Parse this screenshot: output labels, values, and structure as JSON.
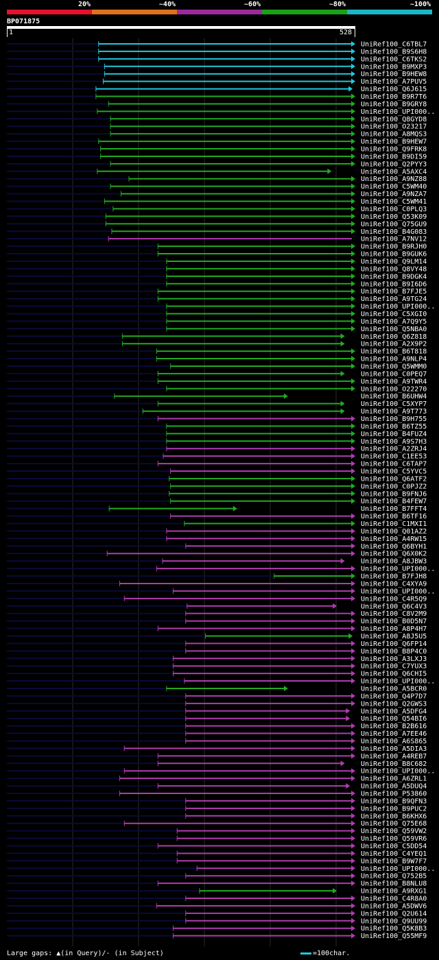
{
  "legend": {
    "labels": [
      "20%",
      "~40%",
      "~60%",
      "~80%",
      "~100%"
    ],
    "colors": [
      "#e4122c",
      "#e0701a",
      "#9b2a9b",
      "#1aa01a",
      "#18b8c8"
    ]
  },
  "query": {
    "name": "BP071875",
    "start": "1",
    "end": "528"
  },
  "footer": {
    "gaps_label": "Large gaps: ▲(in Query)/- (in Subject)",
    "scale_label": "=100char."
  },
  "chart_data": {
    "type": "alignment",
    "query_length": 528,
    "colors": {
      "cyan": "#22c8e0",
      "green": "#22aa22",
      "purple": "#b03cb0",
      "dim": "#0a0a3a"
    },
    "hits": [
      {
        "name": "UniRef100_C6TBL7",
        "color": "cyan",
        "start": 139,
        "end": 528,
        "arrow": true
      },
      {
        "name": "UniRef100_B9S6H8",
        "color": "cyan",
        "start": 139,
        "end": 528,
        "arrow": true
      },
      {
        "name": "UniRef100_C6TKS2",
        "color": "cyan",
        "start": 139,
        "end": 528,
        "arrow": true
      },
      {
        "name": "UniRef100_B9MXP3",
        "color": "cyan",
        "start": 148,
        "end": 528,
        "arrow": true
      },
      {
        "name": "UniRef100_B9HEW8",
        "color": "cyan",
        "start": 148,
        "end": 528,
        "arrow": true
      },
      {
        "name": "UniRef100_A7PUV5",
        "color": "cyan",
        "start": 146,
        "end": 528,
        "arrow": true
      },
      {
        "name": "UniRef100_Q6J615",
        "color": "cyan",
        "start": 135,
        "end": 524,
        "arrow": true
      },
      {
        "name": "UniRef100_B9R7T6",
        "color": "green",
        "start": 135,
        "end": 528,
        "arrow": true
      },
      {
        "name": "UniRef100_B9GRY8",
        "color": "green",
        "start": 154,
        "end": 528,
        "arrow": true
      },
      {
        "name": "UniRef100_UPI000..",
        "color": "green",
        "start": 137,
        "end": 528,
        "arrow": true
      },
      {
        "name": "UniRef100_Q8GYD8",
        "color": "green",
        "start": 157,
        "end": 528,
        "arrow": true
      },
      {
        "name": "UniRef100_O23217",
        "color": "green",
        "start": 157,
        "end": 528,
        "arrow": true
      },
      {
        "name": "UniRef100_A8MQS3",
        "color": "green",
        "start": 157,
        "end": 528,
        "arrow": true
      },
      {
        "name": "UniRef100_B9HEW7",
        "color": "green",
        "start": 139,
        "end": 528,
        "arrow": true
      },
      {
        "name": "UniRef100_Q9FRK8",
        "color": "green",
        "start": 142,
        "end": 528,
        "arrow": true
      },
      {
        "name": "UniRef100_B9DI59",
        "color": "green",
        "start": 142,
        "end": 528,
        "arrow": true
      },
      {
        "name": "UniRef100_Q2PYY3",
        "color": "green",
        "start": 157,
        "end": 528,
        "arrow": true
      },
      {
        "name": "UniRef100_A5AXC4",
        "color": "green",
        "start": 137,
        "end": 492,
        "arrow": true
      },
      {
        "name": "UniRef100_A9NZ88",
        "color": "green",
        "start": 185,
        "end": 528,
        "arrow": true
      },
      {
        "name": "UniRef100_C5WM40",
        "color": "green",
        "start": 157,
        "end": 528,
        "arrow": true
      },
      {
        "name": "UniRef100_A9NZA7",
        "color": "green",
        "start": 173,
        "end": 528,
        "arrow": true
      },
      {
        "name": "UniRef100_C5WM41",
        "color": "green",
        "start": 148,
        "end": 528,
        "arrow": true
      },
      {
        "name": "UniRef100_C0PLQ3",
        "color": "green",
        "start": 161,
        "end": 528,
        "arrow": true
      },
      {
        "name": "UniRef100_Q53K09",
        "color": "green",
        "start": 150,
        "end": 528,
        "arrow": true
      },
      {
        "name": "UniRef100_Q75GU9",
        "color": "green",
        "start": 150,
        "end": 528,
        "arrow": true
      },
      {
        "name": "UniRef100_B4G083",
        "color": "green",
        "start": 159,
        "end": 528,
        "arrow": true
      },
      {
        "name": "UniRef100_A7NV12",
        "color": "purple",
        "start": 154,
        "end": 528,
        "arrow": false
      },
      {
        "name": "UniRef100_B9RJH0",
        "color": "green",
        "start": 229,
        "end": 528,
        "arrow": true
      },
      {
        "name": "UniRef100_B9GUK6",
        "color": "green",
        "start": 229,
        "end": 528,
        "arrow": true
      },
      {
        "name": "UniRef100_Q9LM14",
        "color": "green",
        "start": 242,
        "end": 528,
        "arrow": true
      },
      {
        "name": "UniRef100_Q8VY48",
        "color": "green",
        "start": 242,
        "end": 528,
        "arrow": true
      },
      {
        "name": "UniRef100_B9DGK4",
        "color": "green",
        "start": 242,
        "end": 528,
        "arrow": true
      },
      {
        "name": "UniRef100_B9I6D6",
        "color": "green",
        "start": 242,
        "end": 528,
        "arrow": true
      },
      {
        "name": "UniRef100_B7FJE5",
        "color": "green",
        "start": 229,
        "end": 528,
        "arrow": true
      },
      {
        "name": "UniRef100_A9TG24",
        "color": "green",
        "start": 229,
        "end": 528,
        "arrow": true
      },
      {
        "name": "UniRef100_UPI000..",
        "color": "green",
        "start": 242,
        "end": 528,
        "arrow": true
      },
      {
        "name": "UniRef100_C5XGI0",
        "color": "green",
        "start": 242,
        "end": 528,
        "arrow": true
      },
      {
        "name": "UniRef100_A7Q9Y5",
        "color": "green",
        "start": 242,
        "end": 528,
        "arrow": true
      },
      {
        "name": "UniRef100_Q5NBA0",
        "color": "green",
        "start": 242,
        "end": 528,
        "arrow": true
      },
      {
        "name": "UniRef100_Q6Z818",
        "color": "green",
        "start": 175,
        "end": 512,
        "arrow": true
      },
      {
        "name": "UniRef100_A2X9P2",
        "color": "green",
        "start": 175,
        "end": 512,
        "arrow": true
      },
      {
        "name": "UniRef100_B6T818",
        "color": "green",
        "start": 227,
        "end": 528,
        "arrow": true
      },
      {
        "name": "UniRef100_A9NLP4",
        "color": "green",
        "start": 227,
        "end": 528,
        "arrow": true
      },
      {
        "name": "UniRef100_Q5WMM0",
        "color": "green",
        "start": 248,
        "end": 528,
        "arrow": true
      },
      {
        "name": "UniRef100_C0PEQ7",
        "color": "green",
        "start": 229,
        "end": 512,
        "arrow": true
      },
      {
        "name": "UniRef100_A9TWR4",
        "color": "green",
        "start": 229,
        "end": 528,
        "arrow": true
      },
      {
        "name": "UniRef100_O22270",
        "color": "green",
        "start": 242,
        "end": 528,
        "arrow": true
      },
      {
        "name": "UniRef100_B6UHW4",
        "color": "green",
        "start": 163,
        "end": 426,
        "arrow": true
      },
      {
        "name": "UniRef100_C5XYP7",
        "color": "green",
        "start": 229,
        "end": 512,
        "arrow": true
      },
      {
        "name": "UniRef100_A9T773",
        "color": "green",
        "start": 206,
        "end": 512,
        "arrow": true
      },
      {
        "name": "UniRef100_B9H755",
        "color": "purple",
        "start": 229,
        "end": 528,
        "arrow": true
      },
      {
        "name": "UniRef100_B6TZ55",
        "color": "green",
        "start": 242,
        "end": 528,
        "arrow": true
      },
      {
        "name": "UniRef100_B4FUZ4",
        "color": "green",
        "start": 242,
        "end": 528,
        "arrow": true
      },
      {
        "name": "UniRef100_A9S7H3",
        "color": "green",
        "start": 242,
        "end": 528,
        "arrow": true
      },
      {
        "name": "UniRef100_A2ZRJ4",
        "color": "purple",
        "start": 242,
        "end": 528,
        "arrow": true
      },
      {
        "name": "UniRef100_C1EE53",
        "color": "purple",
        "start": 237,
        "end": 528,
        "arrow": true
      },
      {
        "name": "UniRef100_C6TAP7",
        "color": "purple",
        "start": 229,
        "end": 528,
        "arrow": true
      },
      {
        "name": "UniRef100_C5YVC5",
        "color": "purple",
        "start": 248,
        "end": 528,
        "arrow": true
      },
      {
        "name": "UniRef100_Q6ATF2",
        "color": "green",
        "start": 246,
        "end": 528,
        "arrow": true
      },
      {
        "name": "UniRef100_C0PJZ2",
        "color": "green",
        "start": 248,
        "end": 528,
        "arrow": true
      },
      {
        "name": "UniRef100_B9FNJ6",
        "color": "green",
        "start": 246,
        "end": 528,
        "arrow": true
      },
      {
        "name": "UniRef100_B4FEW7",
        "color": "green",
        "start": 248,
        "end": 528,
        "arrow": true
      },
      {
        "name": "UniRef100_B7FFT4",
        "color": "green",
        "start": 155,
        "end": 349,
        "arrow": true
      },
      {
        "name": "UniRef100_B6TF16",
        "color": "purple",
        "start": 248,
        "end": 528,
        "arrow": true
      },
      {
        "name": "UniRef100_C1MXI1",
        "color": "green",
        "start": 269,
        "end": 528,
        "arrow": true
      },
      {
        "name": "UniRef100_Q01AZ2",
        "color": "purple",
        "start": 242,
        "end": 528,
        "arrow": true
      },
      {
        "name": "UniRef100_A4RW15",
        "color": "purple",
        "start": 242,
        "end": 528,
        "arrow": true
      },
      {
        "name": "UniRef100_Q6BYH1",
        "color": "purple",
        "start": 271,
        "end": 528,
        "arrow": true
      },
      {
        "name": "UniRef100_Q6X0K2",
        "color": "purple",
        "start": 152,
        "end": 528,
        "arrow": true
      },
      {
        "name": "UniRef100_A8JBW3",
        "color": "purple",
        "start": 236,
        "end": 512,
        "arrow": true
      },
      {
        "name": "UniRef100_UPI000..",
        "color": "purple",
        "start": 227,
        "end": 528,
        "arrow": true
      },
      {
        "name": "UniRef100_B7FJH8",
        "color": "green",
        "start": 405,
        "end": 528,
        "arrow": true
      },
      {
        "name": "UniRef100_C4XYA9",
        "color": "purple",
        "start": 171,
        "end": 528,
        "arrow": true
      },
      {
        "name": "UniRef100_UPI000..",
        "color": "purple",
        "start": 252,
        "end": 528,
        "arrow": true
      },
      {
        "name": "UniRef100_C4R5Q9",
        "color": "purple",
        "start": 178,
        "end": 528,
        "arrow": true
      },
      {
        "name": "UniRef100_Q6C4V3",
        "color": "purple",
        "start": 273,
        "end": 500,
        "arrow": true
      },
      {
        "name": "UniRef100_C8V2M9",
        "color": "purple",
        "start": 271,
        "end": 528,
        "arrow": true
      },
      {
        "name": "UniRef100_B0D5N7",
        "color": "purple",
        "start": 271,
        "end": 528,
        "arrow": true
      },
      {
        "name": "UniRef100_A8P4H7",
        "color": "purple",
        "start": 229,
        "end": 528,
        "arrow": true
      },
      {
        "name": "UniRef100_A8J5U5",
        "color": "green",
        "start": 301,
        "end": 524,
        "arrow": true
      },
      {
        "name": "UniRef100_Q6FP14",
        "color": "purple",
        "start": 271,
        "end": 528,
        "arrow": true
      },
      {
        "name": "UniRef100_B8P4C0",
        "color": "purple",
        "start": 271,
        "end": 528,
        "arrow": true
      },
      {
        "name": "UniRef100_A3LXJ3",
        "color": "purple",
        "start": 252,
        "end": 528,
        "arrow": true
      },
      {
        "name": "UniRef100_C7YUX3",
        "color": "purple",
        "start": 252,
        "end": 528,
        "arrow": true
      },
      {
        "name": "UniRef100_Q6CHI5",
        "color": "purple",
        "start": 252,
        "end": 528,
        "arrow": true
      },
      {
        "name": "UniRef100_UPI000..",
        "color": "purple",
        "start": 269,
        "end": 528,
        "arrow": true
      },
      {
        "name": "UniRef100_A5BCR0",
        "color": "green",
        "start": 242,
        "end": 426,
        "arrow": true
      },
      {
        "name": "UniRef100_Q4P7D7",
        "color": "purple",
        "start": 271,
        "end": 528,
        "arrow": true
      },
      {
        "name": "UniRef100_Q2GWS3",
        "color": "purple",
        "start": 271,
        "end": 528,
        "arrow": true
      },
      {
        "name": "UniRef100_A5DFG4",
        "color": "purple",
        "start": 271,
        "end": 520,
        "arrow": true
      },
      {
        "name": "UniRef100_Q54BI6",
        "color": "purple",
        "start": 271,
        "end": 520,
        "arrow": true
      },
      {
        "name": "UniRef100_B2B616",
        "color": "purple",
        "start": 271,
        "end": 528,
        "arrow": true
      },
      {
        "name": "UniRef100_A7EE46",
        "color": "purple",
        "start": 271,
        "end": 528,
        "arrow": true
      },
      {
        "name": "UniRef100_A6S865",
        "color": "purple",
        "start": 271,
        "end": 528,
        "arrow": true
      },
      {
        "name": "UniRef100_A5DIA3",
        "color": "purple",
        "start": 178,
        "end": 528,
        "arrow": true
      },
      {
        "name": "UniRef100_A4REB7",
        "color": "purple",
        "start": 229,
        "end": 528,
        "arrow": true
      },
      {
        "name": "UniRef100_B8C682",
        "color": "purple",
        "start": 229,
        "end": 512,
        "arrow": true
      },
      {
        "name": "UniRef100_UPI000..",
        "color": "purple",
        "start": 178,
        "end": 528,
        "arrow": true
      },
      {
        "name": "UniRef100_A6ZRL1",
        "color": "purple",
        "start": 171,
        "end": 528,
        "arrow": true
      },
      {
        "name": "UniRef100_A5DUQ4",
        "color": "purple",
        "start": 229,
        "end": 520,
        "arrow": true
      },
      {
        "name": "UniRef100_P53860",
        "color": "purple",
        "start": 171,
        "end": 528,
        "arrow": true
      },
      {
        "name": "UniRef100_B9QFN3",
        "color": "purple",
        "start": 271,
        "end": 528,
        "arrow": true
      },
      {
        "name": "UniRef100_B9PUC2",
        "color": "purple",
        "start": 271,
        "end": 528,
        "arrow": true
      },
      {
        "name": "UniRef100_B6KHX6",
        "color": "purple",
        "start": 271,
        "end": 528,
        "arrow": true
      },
      {
        "name": "UniRef100_Q75E68",
        "color": "purple",
        "start": 178,
        "end": 528,
        "arrow": true
      },
      {
        "name": "UniRef100_Q59VW2",
        "color": "purple",
        "start": 258,
        "end": 528,
        "arrow": true
      },
      {
        "name": "UniRef100_Q59VR6",
        "color": "purple",
        "start": 258,
        "end": 528,
        "arrow": true
      },
      {
        "name": "UniRef100_C5DD54",
        "color": "purple",
        "start": 229,
        "end": 528,
        "arrow": true
      },
      {
        "name": "UniRef100_C4YEQ1",
        "color": "purple",
        "start": 258,
        "end": 528,
        "arrow": true
      },
      {
        "name": "UniRef100_B9W7F7",
        "color": "purple",
        "start": 258,
        "end": 528,
        "arrow": true
      },
      {
        "name": "UniRef100_UPI000..",
        "color": "purple",
        "start": 288,
        "end": 528,
        "arrow": true
      },
      {
        "name": "UniRef100_Q752B5",
        "color": "purple",
        "start": 271,
        "end": 528,
        "arrow": true
      },
      {
        "name": "UniRef100_B8NLU8",
        "color": "purple",
        "start": 229,
        "end": 528,
        "arrow": true
      },
      {
        "name": "UniRef100_A9RXG1",
        "color": "green",
        "start": 292,
        "end": 500,
        "arrow": true
      },
      {
        "name": "UniRef100_C4R8A0",
        "color": "purple",
        "start": 271,
        "end": 528,
        "arrow": true
      },
      {
        "name": "UniRef100_A5DWV6",
        "color": "purple",
        "start": 227,
        "end": 528,
        "arrow": true
      },
      {
        "name": "UniRef100_Q2U614",
        "color": "purple",
        "start": 271,
        "end": 528,
        "arrow": true
      },
      {
        "name": "UniRef100_Q9UU99",
        "color": "purple",
        "start": 271,
        "end": 528,
        "arrow": true
      },
      {
        "name": "UniRef100_Q5K8B3",
        "color": "purple",
        "start": 252,
        "end": 528,
        "arrow": true
      },
      {
        "name": "UniRef100_Q55MF9",
        "color": "purple",
        "start": 252,
        "end": 528,
        "arrow": true
      }
    ]
  }
}
